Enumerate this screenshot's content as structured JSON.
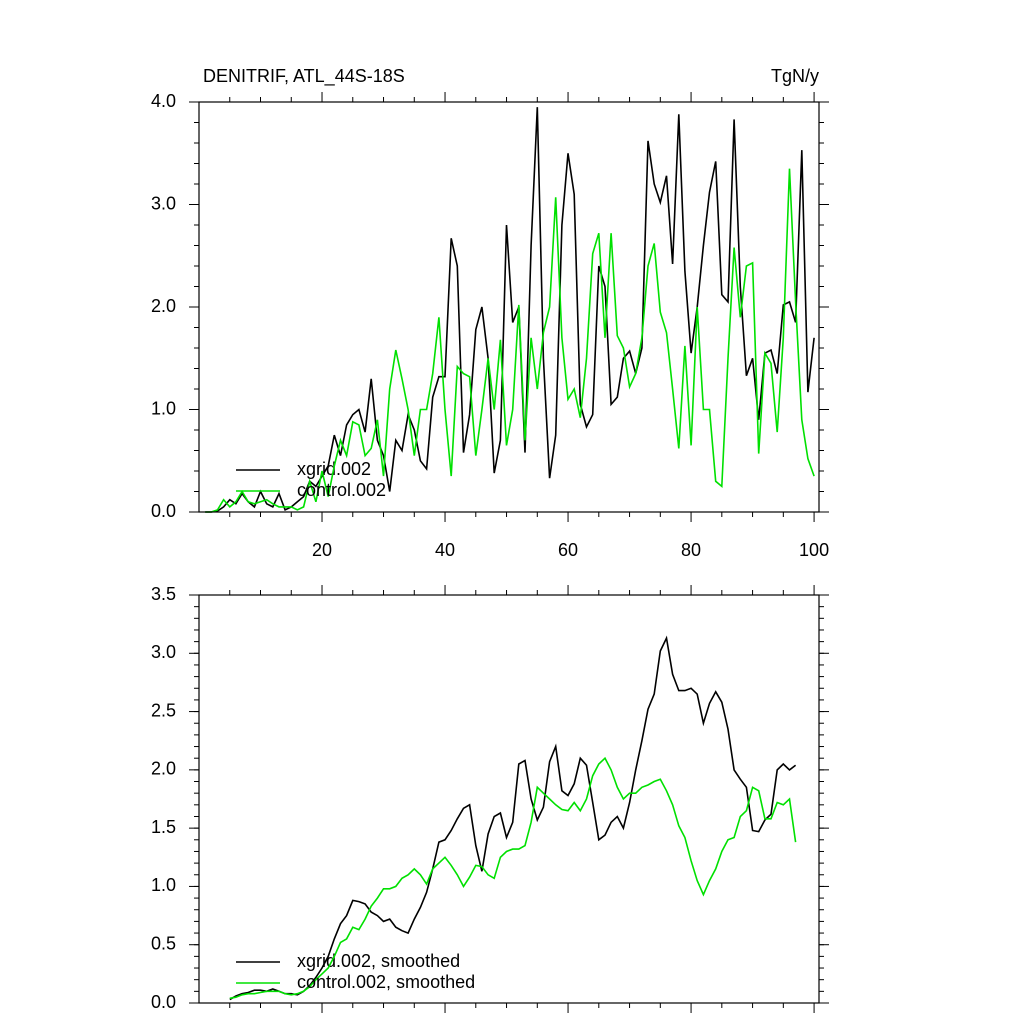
{
  "chart_data": [
    {
      "type": "line",
      "title": "DENITRIF, ATL_44S-18S",
      "units": "TgN/y",
      "x": [
        1,
        2,
        3,
        4,
        5,
        6,
        7,
        8,
        9,
        10,
        11,
        12,
        13,
        14,
        15,
        16,
        17,
        18,
        19,
        20,
        21,
        22,
        23,
        24,
        25,
        26,
        27,
        28,
        29,
        30,
        31,
        32,
        33,
        34,
        35,
        36,
        37,
        38,
        39,
        40,
        41,
        42,
        43,
        44,
        45,
        46,
        47,
        48,
        49,
        50,
        51,
        52,
        53,
        54,
        55,
        56,
        57,
        58,
        59,
        60,
        61,
        62,
        63,
        64,
        65,
        66,
        67,
        68,
        69,
        70,
        71,
        72,
        73,
        74,
        75,
        76,
        77,
        78,
        79,
        80,
        81,
        82,
        83,
        84,
        85,
        86,
        87,
        88,
        89,
        90,
        91,
        92,
        93,
        94,
        95,
        96,
        97,
        98,
        99,
        100
      ],
      "series": [
        {
          "name": "xgrid.002",
          "color": "#000000",
          "values": [
            0,
            0,
            0.01,
            0.05,
            0.12,
            0.08,
            0.18,
            0.1,
            0.05,
            0.2,
            0.08,
            0.05,
            0.18,
            0.02,
            0.05,
            0.1,
            0.15,
            0.3,
            0.25,
            0.35,
            0.45,
            0.75,
            0.55,
            0.85,
            0.95,
            1.0,
            0.78,
            1.3,
            0.7,
            0.55,
            0.2,
            0.7,
            0.6,
            0.95,
            0.8,
            0.5,
            0.42,
            1.12,
            1.32,
            1.32,
            2.67,
            2.4,
            0.58,
            0.95,
            1.78,
            2.0,
            1.5,
            0.38,
            0.7,
            2.8,
            1.85,
            2.0,
            0.58,
            2.6,
            3.95,
            1.5,
            0.33,
            0.75,
            2.8,
            3.5,
            3.1,
            1.05,
            0.83,
            0.95,
            2.4,
            2.2,
            1.05,
            1.12,
            1.5,
            1.57,
            1.35,
            1.6,
            3.62,
            3.2,
            3.02,
            3.28,
            2.42,
            3.88,
            2.35,
            1.55,
            2.0,
            2.6,
            3.12,
            3.42,
            2.12,
            2.05,
            3.83,
            2.2,
            1.33,
            1.5,
            0.9,
            1.55,
            1.58,
            1.35,
            2.02,
            2.05,
            1.85,
            3.53,
            1.17,
            1.7
          ]
        },
        {
          "name": "control.002",
          "color": "#00e000",
          "values": [
            0,
            0,
            0.02,
            0.12,
            0.05,
            0.1,
            0.2,
            0.1,
            0.08,
            0.1,
            0.12,
            0.08,
            0.05,
            0.05,
            0.05,
            0.02,
            0.05,
            0.3,
            0.1,
            0.4,
            0.15,
            0.45,
            0.7,
            0.55,
            0.88,
            0.85,
            0.55,
            0.62,
            0.9,
            0.35,
            1.2,
            1.58,
            1.3,
            1.0,
            0.55,
            1.0,
            1.0,
            1.35,
            1.9,
            1.0,
            0.35,
            1.42,
            1.35,
            1.32,
            0.55,
            1.0,
            1.5,
            1.0,
            1.68,
            0.65,
            1.0,
            2.02,
            0.7,
            1.7,
            1.2,
            1.75,
            2.0,
            3.07,
            1.7,
            1.1,
            1.2,
            0.92,
            1.5,
            2.52,
            2.72,
            1.7,
            2.72,
            1.72,
            1.6,
            1.22,
            1.35,
            1.7,
            2.4,
            2.62,
            1.95,
            1.75,
            1.2,
            0.62,
            1.62,
            0.65,
            2.0,
            1.0,
            1.0,
            0.3,
            0.25,
            1.5,
            2.58,
            1.9,
            2.4,
            2.43,
            0.57,
            1.55,
            1.45,
            0.78,
            1.7,
            3.35,
            2.05,
            0.9,
            0.52,
            0.35
          ]
        }
      ],
      "xlim": [
        0,
        100.8
      ],
      "xticks": [
        20,
        40,
        60,
        80,
        100
      ],
      "xtick_labels": true,
      "ylim": [
        0,
        4
      ],
      "yticks": [
        {
          "value": 0,
          "label": "0.0"
        },
        {
          "value": 1,
          "label": "1.0"
        },
        {
          "value": 2,
          "label": "2.0"
        },
        {
          "value": 3,
          "label": "3.0"
        },
        {
          "value": 4,
          "label": "4.0"
        }
      ]
    },
    {
      "type": "line",
      "x": [
        5,
        6,
        7,
        8,
        9,
        10,
        11,
        12,
        13,
        14,
        15,
        16,
        17,
        18,
        19,
        20,
        21,
        22,
        23,
        24,
        25,
        26,
        27,
        28,
        29,
        30,
        31,
        32,
        33,
        34,
        35,
        36,
        37,
        38,
        39,
        40,
        41,
        42,
        43,
        44,
        45,
        46,
        47,
        48,
        49,
        50,
        51,
        52,
        53,
        54,
        55,
        56,
        57,
        58,
        59,
        60,
        61,
        62,
        63,
        64,
        65,
        66,
        67,
        68,
        69,
        70,
        71,
        72,
        73,
        74,
        75,
        76,
        77,
        78,
        79,
        80,
        81,
        82,
        83,
        84,
        85,
        86,
        87,
        88,
        89,
        90,
        91,
        92,
        93,
        94,
        95,
        96,
        97
      ],
      "series": [
        {
          "name": "xgrid.002, smoothed",
          "color": "#000000",
          "values": [
            0.03,
            0.06,
            0.08,
            0.09,
            0.11,
            0.11,
            0.1,
            0.12,
            0.1,
            0.08,
            0.08,
            0.07,
            0.1,
            0.15,
            0.22,
            0.3,
            0.4,
            0.55,
            0.68,
            0.75,
            0.88,
            0.87,
            0.85,
            0.78,
            0.75,
            0.7,
            0.72,
            0.65,
            0.62,
            0.6,
            0.72,
            0.82,
            0.95,
            1.15,
            1.38,
            1.4,
            1.48,
            1.58,
            1.67,
            1.7,
            1.35,
            1.13,
            1.45,
            1.6,
            1.63,
            1.42,
            1.55,
            2.05,
            2.08,
            1.75,
            1.57,
            1.68,
            2.07,
            2.2,
            1.82,
            1.78,
            1.88,
            2.1,
            2.04,
            1.72,
            1.4,
            1.44,
            1.55,
            1.6,
            1.5,
            1.72,
            2.0,
            2.25,
            2.52,
            2.65,
            3.02,
            3.13,
            2.82,
            2.68,
            2.68,
            2.7,
            2.65,
            2.4,
            2.57,
            2.67,
            2.58,
            2.35,
            2.0,
            1.92,
            1.85,
            1.48,
            1.47,
            1.57,
            1.62,
            2.0,
            2.05,
            2.0,
            2.04
          ]
        },
        {
          "name": "control.002, smoothed",
          "color": "#00e000",
          "values": [
            0.04,
            0.05,
            0.07,
            0.08,
            0.08,
            0.09,
            0.1,
            0.1,
            0.1,
            0.08,
            0.07,
            0.08,
            0.1,
            0.14,
            0.2,
            0.25,
            0.3,
            0.4,
            0.52,
            0.55,
            0.65,
            0.63,
            0.72,
            0.83,
            0.9,
            0.98,
            0.98,
            1.0,
            1.07,
            1.1,
            1.15,
            1.1,
            1.02,
            1.15,
            1.2,
            1.25,
            1.18,
            1.1,
            1.0,
            1.08,
            1.18,
            1.17,
            1.1,
            1.07,
            1.25,
            1.3,
            1.32,
            1.32,
            1.35,
            1.55,
            1.85,
            1.8,
            1.75,
            1.7,
            1.66,
            1.65,
            1.72,
            1.65,
            1.75,
            1.95,
            2.05,
            2.1,
            2.0,
            1.85,
            1.75,
            1.8,
            1.8,
            1.85,
            1.87,
            1.9,
            1.92,
            1.82,
            1.7,
            1.52,
            1.42,
            1.22,
            1.05,
            0.93,
            1.05,
            1.15,
            1.3,
            1.4,
            1.42,
            1.6,
            1.65,
            1.85,
            1.82,
            1.58,
            1.58,
            1.72,
            1.7,
            1.75,
            1.38
          ]
        }
      ],
      "xlim": [
        0,
        100.8
      ],
      "xticks": [
        20,
        40,
        60,
        80,
        100
      ],
      "xtick_labels": false,
      "ylim": [
        0,
        3.5
      ],
      "yticks": [
        {
          "value": 0,
          "label": "0.0"
        },
        {
          "value": 0.5,
          "label": "0.5"
        },
        {
          "value": 1,
          "label": "1.0"
        },
        {
          "value": 1.5,
          "label": "1.5"
        },
        {
          "value": 2,
          "label": "2.0"
        },
        {
          "value": 2.5,
          "label": "2.5"
        },
        {
          "value": 3,
          "label": "3.0"
        },
        {
          "value": 3.5,
          "label": "3.5"
        }
      ]
    }
  ]
}
